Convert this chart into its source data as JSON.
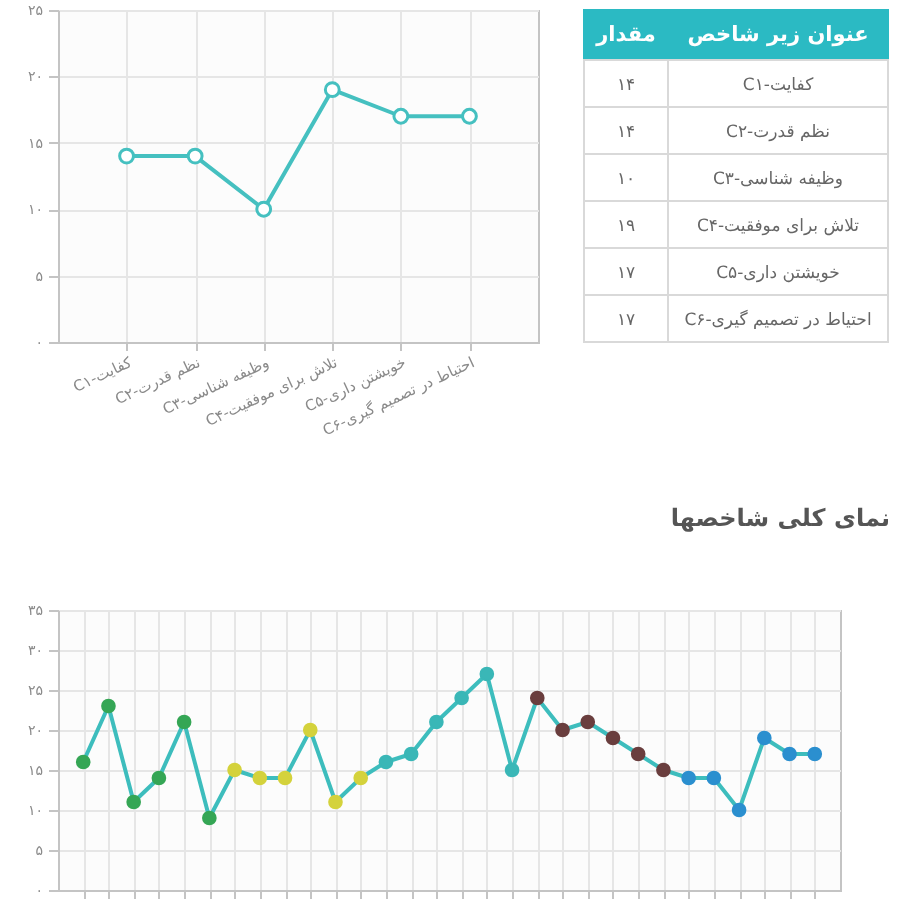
{
  "chart_data": [
    {
      "type": "line",
      "categories": [
        "C۱-کفایت",
        "C۲-نظم قدرت",
        "C۳-وظیفه شناسی",
        "C۴-تلاش برای موفقیت",
        "C۵-خویشتن داری",
        "C۶-احتیاط در تصمیم گیری"
      ],
      "values": [
        14,
        14,
        10,
        19,
        17,
        17
      ],
      "color": "#45c0c0",
      "marker": "circle",
      "grid": true,
      "ylim": [
        0,
        25
      ],
      "yticks": [
        {
          "value": 0,
          "label": "۰"
        },
        {
          "value": 5,
          "label": "۵"
        },
        {
          "value": 10,
          "label": "۱۰"
        },
        {
          "value": 15,
          "label": "۱۵"
        },
        {
          "value": 20,
          "label": "۲۰"
        },
        {
          "value": 25,
          "label": "۲۵"
        }
      ]
    },
    {
      "type": "other",
      "annotations": [
        "عنوان زیر شاخص",
        "مقدار",
        "C۱-کفایت",
        "۱۴",
        "C۲-نظم قدرت",
        "۱۴",
        "C۳-وظیفه شناسی",
        "۱۰",
        "C۴-تلاش برای موفقیت",
        "۱۹",
        "C۵-خویشتن داری",
        "۱۷",
        "C۶-احتیاط در تصمیم گیری",
        "۱۷"
      ]
    },
    {
      "type": "line",
      "title": "نمای کلی شاخصها",
      "categories": [
        null,
        null,
        null,
        null,
        null,
        null,
        null,
        null,
        null,
        null,
        null,
        null,
        null,
        null,
        null,
        null,
        null,
        null,
        null,
        null,
        null,
        null,
        null,
        null,
        null,
        null,
        null,
        null,
        null,
        null
      ],
      "series": [
        {
          "color": "#3dbdbd",
          "colors": [
            "#35a655",
            "#35a655",
            "#35a655",
            "#35a655",
            "#35a655",
            "#35a655",
            "#d4d23c",
            "#d4d23c",
            "#d4d23c",
            "#d4d23c",
            "#d4d23c",
            "#d4d23c",
            "#3ab7b7",
            "#3ab7b7",
            "#3ab7b7",
            "#3ab7b7",
            "#3ab7b7",
            "#3ab7b7",
            "#6a3e3e",
            "#6a3e3e",
            "#6a3e3e",
            "#6a3e3e",
            "#6a3e3e",
            "#6a3e3e",
            "#2b8fcf",
            "#2b8fcf",
            "#2b8fcf",
            "#2b8fcf",
            "#2b8fcf",
            "#2b8fcf"
          ],
          "values": [
            16,
            23,
            11,
            14,
            21,
            9,
            15,
            14,
            14,
            20,
            11,
            14,
            16,
            17,
            21,
            24,
            27,
            15,
            24,
            20,
            21,
            19,
            17,
            15,
            14,
            14,
            10,
            19,
            17,
            17
          ]
        }
      ],
      "marker": "circle",
      "grid": true,
      "ylim": [
        0,
        35
      ],
      "yticks": [
        {
          "value": 0,
          "label": "۰"
        },
        {
          "value": 5,
          "label": "۵"
        },
        {
          "value": 10,
          "label": "۱۰"
        },
        {
          "value": 15,
          "label": "۱۵"
        },
        {
          "value": 20,
          "label": "۲۰"
        },
        {
          "value": 25,
          "label": "۲۵"
        },
        {
          "value": 30,
          "label": "۳۰"
        },
        {
          "value": 35,
          "label": "۳۵"
        }
      ],
      "tick_labels": "y"
    }
  ]
}
